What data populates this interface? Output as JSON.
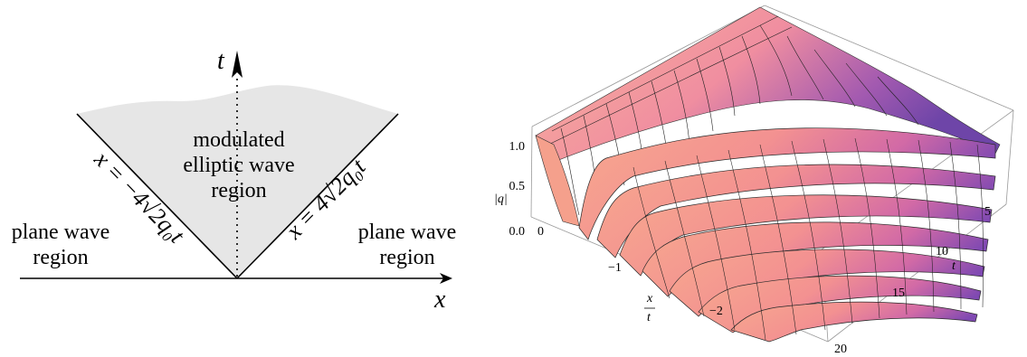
{
  "left_diagram": {
    "axis_t": "t",
    "axis_x": "x",
    "center_label_lines": [
      "modulated",
      "elliptic wave",
      "region"
    ],
    "left_region_lines": [
      "plane wave",
      "region"
    ],
    "right_region_lines": [
      "plane wave",
      "region"
    ],
    "left_boundary_label": "x = −4√2q₀t",
    "right_boundary_label": "x = 4√2q₀t"
  },
  "right_plot": {
    "zlabel": "|q|",
    "z_ticks": [
      "1.0",
      "0.5",
      "0.0"
    ],
    "xlabel_num": "x",
    "xlabel_den": "t",
    "x_ticks": [
      "0",
      "−1",
      "−2"
    ],
    "tlabel": "t",
    "t_ticks": [
      "5",
      "10",
      "15",
      "20"
    ],
    "colors": {
      "surface_light": "#f7a58f",
      "surface_mid": "#f28a8a",
      "surface_dark": "#8a4fb0",
      "highlight": "#f6e6f2"
    }
  }
}
